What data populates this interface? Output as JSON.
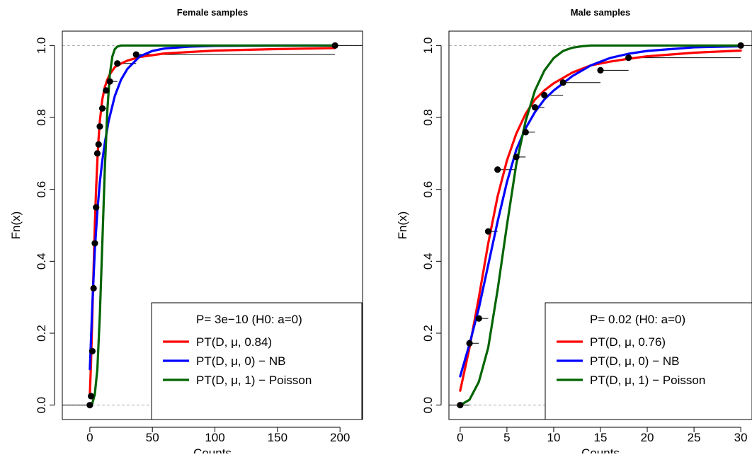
{
  "chart_data": [
    {
      "type": "line",
      "title": "Female samples",
      "xlabel": "Counts",
      "ylabel": "Fn(x)",
      "xlim": [
        -22,
        218
      ],
      "ylim": [
        -0.04,
        1.04
      ],
      "xticks": [
        0,
        50,
        100,
        150,
        200
      ],
      "yticks": [
        0.0,
        0.2,
        0.4,
        0.6,
        0.8,
        1.0
      ],
      "xtick_labels": [
        "0",
        "50",
        "100",
        "150",
        "200"
      ],
      "ytick_labels": [
        "0.0",
        "0.2",
        "0.4",
        "0.6",
        "0.8",
        "1.0"
      ],
      "grid": false,
      "reference_lines_y": [
        0,
        1
      ],
      "legend_position": "bottom-right",
      "legend_header": "P= 3e−10 (H0: a=0)",
      "ecdf": {
        "x": [
          0,
          1,
          2,
          3,
          4,
          5,
          6,
          7,
          8,
          10,
          13,
          16,
          22,
          37,
          196
        ],
        "y": [
          0.0,
          0.025,
          0.15,
          0.325,
          0.45,
          0.55,
          0.7,
          0.725,
          0.775,
          0.825,
          0.875,
          0.9,
          0.95,
          0.975,
          1.0
        ],
        "segment_end_x": [
          1,
          2,
          3,
          4,
          5,
          6,
          7,
          8,
          10,
          13,
          16,
          22,
          37,
          196,
          196
        ]
      },
      "series": [
        {
          "name": "PT(D, μ, 0.84)",
          "color": "#ff0000",
          "x": [
            0,
            1,
            2,
            3,
            4,
            5,
            6,
            7,
            8,
            10,
            12,
            14,
            16,
            20,
            25,
            30,
            40,
            60,
            100,
            150,
            196
          ],
          "y": [
            0.03,
            0.12,
            0.25,
            0.38,
            0.5,
            0.6,
            0.68,
            0.74,
            0.79,
            0.85,
            0.885,
            0.905,
            0.92,
            0.94,
            0.95,
            0.958,
            0.968,
            0.978,
            0.986,
            0.99,
            0.993
          ]
        },
        {
          "name": "PT(D, μ, 0) − NB",
          "color": "#0000ff",
          "x": [
            0,
            2,
            4,
            6,
            8,
            10,
            12,
            15,
            20,
            25,
            30,
            40,
            50,
            60,
            80,
            100,
            150,
            196
          ],
          "y": [
            0.1,
            0.28,
            0.43,
            0.54,
            0.62,
            0.68,
            0.73,
            0.79,
            0.86,
            0.905,
            0.935,
            0.97,
            0.985,
            0.992,
            0.997,
            0.999,
            1.0,
            1.0
          ]
        },
        {
          "name": "PT(D, μ, 1) − Poisson",
          "color": "#006400",
          "x": [
            0,
            2,
            4,
            6,
            8,
            10,
            12,
            14,
            16,
            18,
            20,
            22,
            25,
            30,
            40,
            60,
            100,
            150,
            196
          ],
          "y": [
            0.0,
            0.005,
            0.03,
            0.1,
            0.25,
            0.45,
            0.66,
            0.82,
            0.92,
            0.97,
            0.99,
            0.997,
            1.0,
            1.0,
            1.0,
            1.0,
            1.0,
            1.0,
            1.0
          ]
        }
      ]
    },
    {
      "type": "line",
      "title": "Male samples",
      "xlabel": "Counts",
      "ylabel": "Fn(x)",
      "xlim": [
        -1.2,
        31.2
      ],
      "ylim": [
        -0.04,
        1.04
      ],
      "xticks": [
        0,
        5,
        10,
        15,
        20,
        25,
        30
      ],
      "yticks": [
        0.0,
        0.2,
        0.4,
        0.6,
        0.8,
        1.0
      ],
      "xtick_labels": [
        "0",
        "5",
        "10",
        "15",
        "20",
        "25",
        "30"
      ],
      "ytick_labels": [
        "0.0",
        "0.2",
        "0.4",
        "0.6",
        "0.8",
        "1.0"
      ],
      "grid": false,
      "reference_lines_y": [
        0,
        1
      ],
      "legend_position": "bottom-right",
      "legend_header": "P= 0.02 (H0: a=0)",
      "ecdf": {
        "x": [
          0,
          1,
          2,
          3,
          4,
          6,
          7,
          8,
          9,
          11,
          15,
          18,
          30
        ],
        "y": [
          0.0,
          0.172,
          0.241,
          0.483,
          0.655,
          0.69,
          0.759,
          0.828,
          0.862,
          0.897,
          0.931,
          0.966,
          1.0
        ],
        "segment_end_x": [
          1,
          2,
          3,
          4,
          6,
          7,
          8,
          9,
          11,
          15,
          18,
          30,
          30
        ]
      },
      "series": [
        {
          "name": "PT(D, μ, 0.76)",
          "color": "#ff0000",
          "x": [
            0,
            1,
            2,
            3,
            4,
            5,
            6,
            7,
            8,
            9,
            10,
            12,
            14,
            16,
            18,
            20,
            25,
            30
          ],
          "y": [
            0.04,
            0.16,
            0.3,
            0.45,
            0.58,
            0.68,
            0.755,
            0.81,
            0.85,
            0.875,
            0.895,
            0.925,
            0.945,
            0.955,
            0.963,
            0.97,
            0.98,
            0.986
          ]
        },
        {
          "name": "PT(D, μ, 0) − NB",
          "color": "#0000ff",
          "x": [
            0,
            1,
            2,
            3,
            4,
            5,
            6,
            7,
            8,
            9,
            10,
            12,
            14,
            16,
            18,
            20,
            25,
            30
          ],
          "y": [
            0.08,
            0.17,
            0.27,
            0.39,
            0.51,
            0.62,
            0.71,
            0.77,
            0.815,
            0.85,
            0.875,
            0.915,
            0.945,
            0.965,
            0.977,
            0.985,
            0.995,
            0.998
          ]
        },
        {
          "name": "PT(D, μ, 1) − Poisson",
          "color": "#006400",
          "x": [
            0,
            1,
            2,
            3,
            4,
            5,
            6,
            7,
            8,
            9,
            10,
            11,
            12,
            13,
            14,
            16,
            20,
            25,
            30
          ],
          "y": [
            0.0,
            0.015,
            0.065,
            0.16,
            0.32,
            0.5,
            0.67,
            0.79,
            0.875,
            0.93,
            0.965,
            0.985,
            0.994,
            0.998,
            1.0,
            1.0,
            1.0,
            1.0,
            1.0
          ]
        }
      ]
    }
  ]
}
